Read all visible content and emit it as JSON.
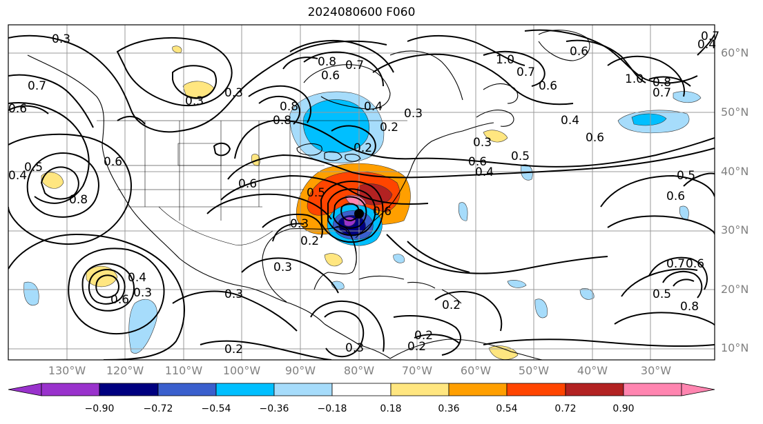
{
  "title": "2024080600 F060",
  "lat_labels": [
    "60°N",
    "50°N",
    "40°N",
    "30°N",
    "20°N",
    "10°N"
  ],
  "lon_labels": [
    "130°W",
    "120°W",
    "110°W",
    "100°W",
    "90°W",
    "80°W",
    "70°W",
    "60°W",
    "50°W",
    "40°W",
    "30°W"
  ],
  "colorbar": {
    "ticks": [
      "−0.90",
      "−0.72",
      "−0.54",
      "−0.36",
      "−0.18",
      "0.18",
      "0.36",
      "0.54",
      "0.72",
      "0.90"
    ],
    "colors": [
      "#9932cc",
      "#000080",
      "#3a5fcd",
      "#00bfff",
      "#a6dcfb",
      "#ffffff",
      "#ffe680",
      "#ff9f00",
      "#ff4500",
      "#b22222",
      "#ff85b0"
    ]
  },
  "contour_labels": {
    "l1": "0.3",
    "l2": "0.8",
    "l3": "0.7",
    "l4": "0.6",
    "l5": "1.0",
    "l6": "0.7",
    "l7": "0.6",
    "l8": "1.0",
    "l9": "0.8",
    "l10": "0.7",
    "l11": "0.6",
    "l12": "0.4",
    "l13": "0.5",
    "l14": "0.4",
    "l15": "0.6",
    "l16": "0.6",
    "l17": "0.8",
    "l18": "0.8",
    "l19": "0.3",
    "l20": "0.6",
    "l21": "0.3",
    "l22": "0.2",
    "l23": "0.3",
    "l24": "0.5",
    "l25": "0.4",
    "l26": "0.6",
    "l27": "0.5",
    "l28": "0.4",
    "l29": "0.7",
    "l30": "0.6",
    "l31": "0.6",
    "l32": "0.3",
    "l33": "0.2",
    "l34": "0.3",
    "l35": "0.4",
    "l36": "0.6",
    "l37": "0.3",
    "l38": "0.3",
    "l39": "0.2",
    "l40": "0.3",
    "l41": "0.2",
    "l42": "0.2",
    "l43": "0.2",
    "l44": "0.7",
    "l45": "0.6",
    "l46": "0.5",
    "l47": "0.8",
    "l48": "0.8",
    "l49": "0.7",
    "l50": "0.6",
    "l51": "0.5",
    "l52": "0.4",
    "l53": "0.3",
    "l54": "0.2"
  }
}
